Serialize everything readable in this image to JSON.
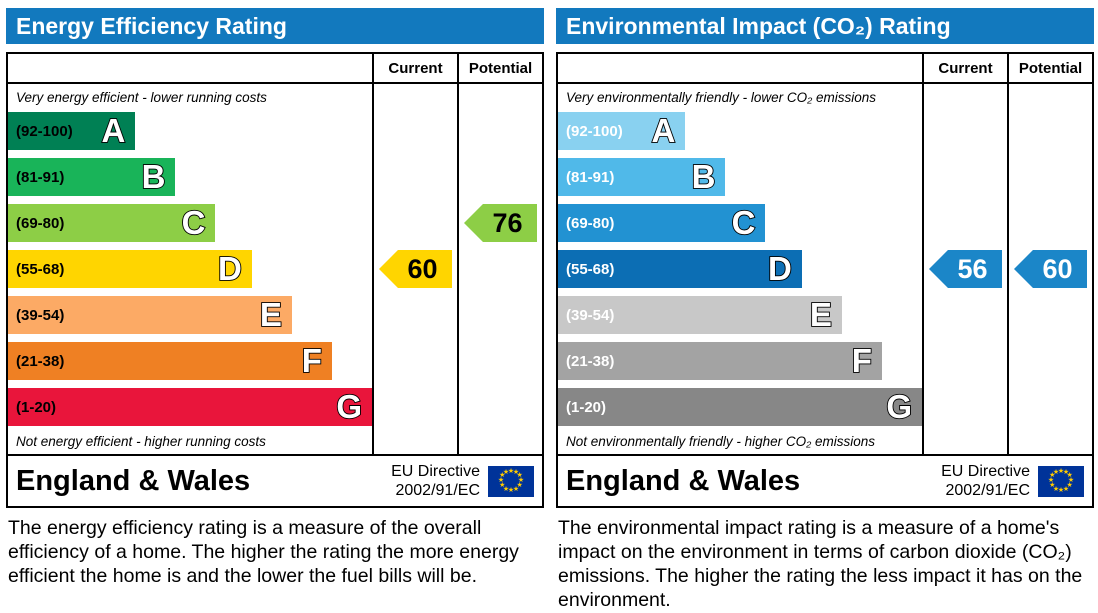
{
  "colors": {
    "header_bg": "#1279be",
    "eu_flag_bg": "#003399",
    "eu_flag_stars": "#ffcc00"
  },
  "columns": {
    "current": "Current",
    "potential": "Potential"
  },
  "left": {
    "title": "Energy Efficiency Rating",
    "top_caption": "Very energy efficient - lower running costs",
    "bottom_caption": "Not energy efficient - higher running costs",
    "bands": [
      {
        "grade": "A",
        "range": "(92-100)",
        "color": "#008054"
      },
      {
        "grade": "B",
        "range": "(81-91)",
        "color": "#19b459"
      },
      {
        "grade": "C",
        "range": "(69-80)",
        "color": "#8dce46"
      },
      {
        "grade": "D",
        "range": "(55-68)",
        "color": "#ffd500"
      },
      {
        "grade": "E",
        "range": "(39-54)",
        "color": "#fcaa65"
      },
      {
        "grade": "F",
        "range": "(21-38)",
        "color": "#ef8023"
      },
      {
        "grade": "G",
        "range": "(1-20)",
        "color": "#e9153b"
      }
    ],
    "current": {
      "value": "60",
      "band": "D",
      "color": "#ffd500"
    },
    "potential": {
      "value": "76",
      "band": "C",
      "color": "#8dce46"
    },
    "footer": {
      "region": "England & Wales",
      "directive_line1": "EU Directive",
      "directive_line2": "2002/91/EC"
    },
    "description": "The energy efficiency rating is a measure of the overall efficiency of a home. The higher the rating the more energy efficient the home is and the lower the fuel bills will be."
  },
  "right": {
    "title": "Environmental Impact (CO₂) Rating",
    "top_caption": "Very environmentally friendly - lower CO₂ emissions",
    "bottom_caption": "Not environmentally friendly - higher CO₂ emissions",
    "bands": [
      {
        "grade": "A",
        "range": "(92-100)",
        "color": "#89d1f0"
      },
      {
        "grade": "B",
        "range": "(81-91)",
        "color": "#50b9e9"
      },
      {
        "grade": "C",
        "range": "(69-80)",
        "color": "#2292d2"
      },
      {
        "grade": "D",
        "range": "(55-68)",
        "color": "#0c6eb4"
      },
      {
        "grade": "E",
        "range": "(39-54)",
        "color": "#c8c8c8"
      },
      {
        "grade": "F",
        "range": "(21-38)",
        "color": "#a3a3a3"
      },
      {
        "grade": "G",
        "range": "(1-20)",
        "color": "#878787"
      }
    ],
    "current": {
      "value": "56",
      "band": "D",
      "color": "#1b86c8"
    },
    "potential": {
      "value": "60",
      "band": "D",
      "color": "#1b86c8"
    },
    "footer": {
      "region": "England & Wales",
      "directive_line1": "EU Directive",
      "directive_line2": "2002/91/EC"
    },
    "description": "The environmental impact rating is a measure of a home's impact on the environment in terms of carbon dioxide (CO₂) emissions. The higher the rating the less impact it has on the environment."
  },
  "chart_data": [
    {
      "type": "bar",
      "title": "Energy Efficiency Rating",
      "categories": [
        "A (92-100)",
        "B (81-91)",
        "C (69-80)",
        "D (55-68)",
        "E (39-54)",
        "F (21-38)",
        "G (1-20)"
      ],
      "series": [
        {
          "name": "Current",
          "values": [
            60
          ],
          "band": "D"
        },
        {
          "name": "Potential",
          "values": [
            76
          ],
          "band": "C"
        }
      ],
      "ylim": [
        1,
        100
      ],
      "top_caption": "Very energy efficient - lower running costs",
      "bottom_caption": "Not energy efficient - higher running costs",
      "footer": "England & Wales | EU Directive 2002/91/EC"
    },
    {
      "type": "bar",
      "title": "Environmental Impact (CO₂) Rating",
      "categories": [
        "A (92-100)",
        "B (81-91)",
        "C (69-80)",
        "D (55-68)",
        "E (39-54)",
        "F (21-38)",
        "G (1-20)"
      ],
      "series": [
        {
          "name": "Current",
          "values": [
            56
          ],
          "band": "D"
        },
        {
          "name": "Potential",
          "values": [
            60
          ],
          "band": "D"
        }
      ],
      "ylim": [
        1,
        100
      ],
      "top_caption": "Very environmentally friendly - lower CO₂ emissions",
      "bottom_caption": "Not environmentally friendly - higher CO₂ emissions",
      "footer": "England & Wales | EU Directive 2002/91/EC"
    }
  ]
}
